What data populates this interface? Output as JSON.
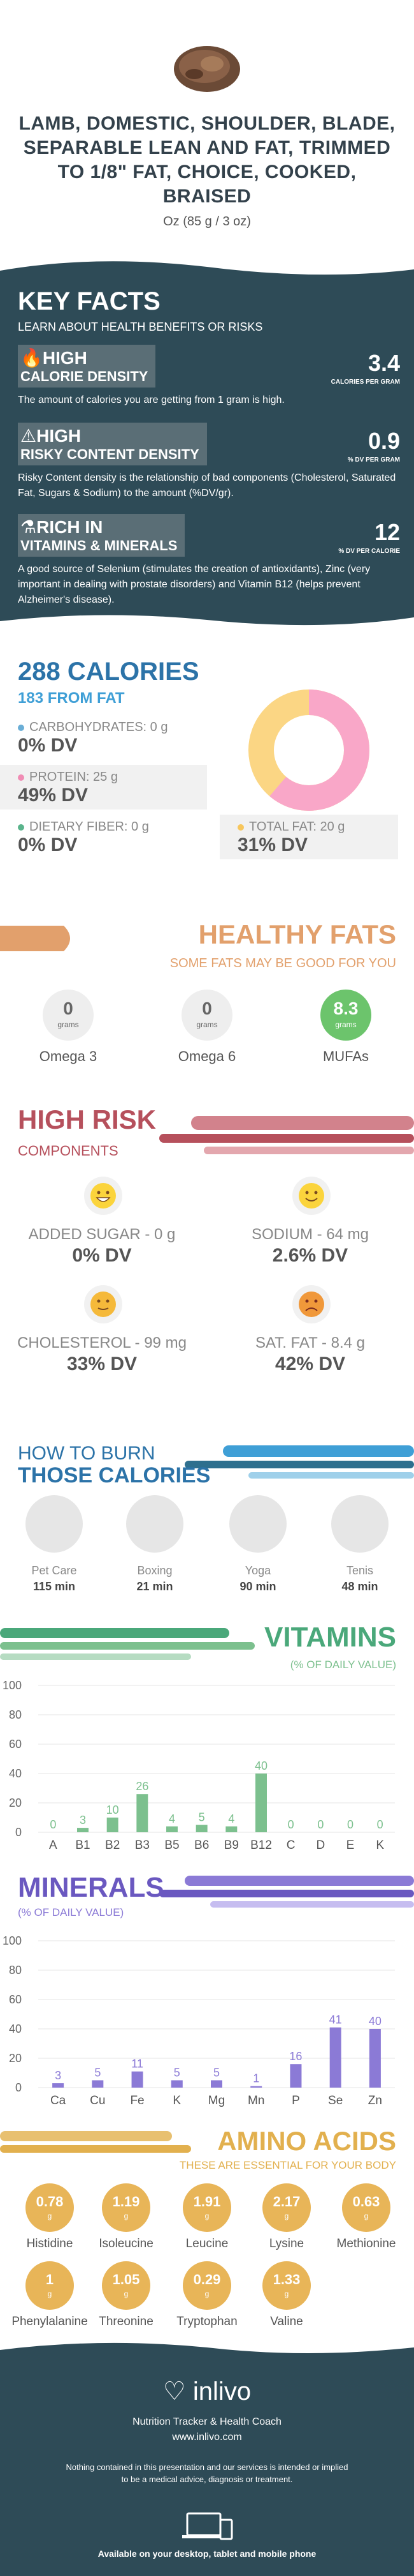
{
  "header": {
    "title": "LAMB, DOMESTIC, SHOULDER, BLADE, SEPARABLE LEAN AND FAT, TRIMMED TO 1/8\" FAT, CHOICE, COOKED, BRAISED",
    "serving": "Oz (85 g / 3 oz)"
  },
  "key_facts": {
    "title": "KEY FACTS",
    "subtitle": "LEARN ABOUT HEALTH BENEFITS OR RISKS",
    "items": [
      {
        "level": "HIGH",
        "label": "CALORIE DENSITY",
        "value": "3.4",
        "unit": "CALORIES PER GRAM",
        "desc": "The amount of calories you are getting from 1 gram is high."
      },
      {
        "level": "HIGH",
        "label": "RISKY CONTENT DENSITY",
        "value": "0.9",
        "unit": "% DV PER GRAM",
        "desc": "Risky Content density is the relationship of bad components (Cholesterol, Saturated Fat, Sugars & Sodium) to the amount (%DV/gr)."
      },
      {
        "level": "RICH  IN",
        "label": "VITAMINS & MINERALS",
        "value": "12",
        "unit": "% DV PER CALORIE",
        "desc": "A good source of Selenium (stimulates the creation of antioxidants), Zinc (very important in dealing with prostate disorders) and Vitamin B12 (helps prevent Alzheimer's disease)."
      }
    ]
  },
  "calories": {
    "title": "288 CALORIES",
    "from_fat": "183 FROM FAT",
    "macros": [
      {
        "label": "CARBOHYDRATES: 0 g",
        "dv": "0% DV",
        "color": "#6aaed6"
      },
      {
        "label": "PROTEIN: 25 g",
        "dv": "49% DV",
        "color": "#f08cb4"
      },
      {
        "label": "DIETARY FIBER: 0 g",
        "dv": "0% DV",
        "color": "#5ab48c"
      },
      {
        "label": "TOTAL FAT: 20 g",
        "dv": "31% DV",
        "color": "#f7c65c"
      }
    ],
    "donut": {
      "protein_pct": 49,
      "fat_pct": 31,
      "protein_color": "#f9a7c8",
      "fat_color": "#fbd684"
    }
  },
  "fats": {
    "title": "HEALTHY FATS",
    "subtitle": "SOME FATS MAY BE GOOD FOR YOU",
    "items": [
      {
        "value": "0",
        "unit": "grams",
        "name": "Omega 3"
      },
      {
        "value": "0",
        "unit": "grams",
        "name": "Omega 6"
      },
      {
        "value": "8.3",
        "unit": "grams",
        "name": "MUFAs"
      }
    ]
  },
  "risk": {
    "title": "HIGH RISK",
    "subtitle": "COMPONENTS",
    "items": [
      {
        "label": "ADDED SUGAR - 0 g",
        "dv": "0% DV",
        "face": "happy"
      },
      {
        "label": "SODIUM - 64 mg",
        "dv": "2.6% DV",
        "face": "smile"
      },
      {
        "label": "CHOLESTEROL - 99 mg",
        "dv": "33% DV",
        "face": "neutral"
      },
      {
        "label": "SAT. FAT - 8.4 g",
        "dv": "42% DV",
        "face": "sad"
      }
    ]
  },
  "burn": {
    "title1": "HOW TO BURN",
    "title2": "THOSE CALORIES",
    "items": [
      {
        "name": "Pet Care",
        "min": "115 min"
      },
      {
        "name": "Boxing",
        "min": "21 min"
      },
      {
        "name": "Yoga",
        "min": "90 min"
      },
      {
        "name": "Tenis",
        "min": "48 min"
      }
    ]
  },
  "vitamins": {
    "title": "VITAMINS",
    "subtitle": "(% OF DAILY VALUE)",
    "chart_data": {
      "type": "bar",
      "categories": [
        "A",
        "B1",
        "B2",
        "B3",
        "B5",
        "B6",
        "B9",
        "B12",
        "C",
        "D",
        "E",
        "K"
      ],
      "values": [
        0,
        3,
        10,
        26,
        4,
        5,
        4,
        40,
        0,
        0,
        0,
        0
      ],
      "yticks": [
        0,
        20,
        40,
        60,
        80,
        100
      ],
      "ylim": [
        0,
        100
      ],
      "color": "#7cc08e",
      "label_color": "#7cc08e"
    }
  },
  "minerals": {
    "title": "MINERALS",
    "subtitle": "(% OF DAILY VALUE)",
    "chart_data": {
      "type": "bar",
      "categories": [
        "Ca",
        "Cu",
        "Fe",
        "K",
        "Mg",
        "Mn",
        "P",
        "Se",
        "Zn"
      ],
      "values": [
        3,
        5,
        11,
        5,
        5,
        1,
        16,
        41,
        40
      ],
      "yticks": [
        0,
        20,
        40,
        60,
        80,
        100
      ],
      "ylim": [
        0,
        100
      ],
      "color": "#8b7ad6",
      "label_color": "#8b7ad6"
    }
  },
  "amino": {
    "title": "AMINO ACIDS",
    "subtitle": "THESE ARE ESSENTIAL FOR YOUR BODY",
    "items": [
      {
        "value": "0.78",
        "unit": "g",
        "name": "Histidine"
      },
      {
        "value": "1.19",
        "unit": "g",
        "name": "Isoleucine"
      },
      {
        "value": "1.91",
        "unit": "g",
        "name": "Leucine"
      },
      {
        "value": "2.17",
        "unit": "g",
        "name": "Lysine"
      },
      {
        "value": "0.63",
        "unit": "g",
        "name": "Methionine"
      },
      {
        "value": "1",
        "unit": "g",
        "name": "Phenylalanine"
      },
      {
        "value": "1.05",
        "unit": "g",
        "name": "Threonine"
      },
      {
        "value": "0.29",
        "unit": "g",
        "name": "Tryptophan"
      },
      {
        "value": "1.33",
        "unit": "g",
        "name": "Valine"
      }
    ]
  },
  "footer": {
    "brand": "inlivo",
    "tagline": "Nutrition Tracker & Health Coach",
    "url": "www.inlivo.com",
    "disclaimer": "Nothing contained in this presentation and our services is intended or implied to be a medical advice, diagnosis or treatment.",
    "available": "Available on your desktop, tablet and mobile phone"
  }
}
